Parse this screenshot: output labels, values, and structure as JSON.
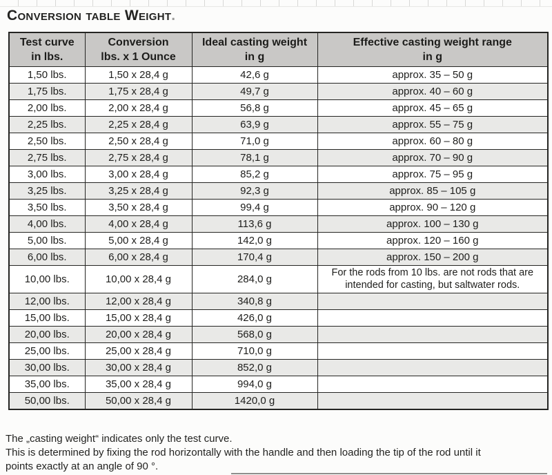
{
  "page": {
    "title": "Conversion table Weight",
    "title_dot": "."
  },
  "table": {
    "headers": [
      {
        "line1": "Test curve",
        "line2": "in lbs."
      },
      {
        "line1": "Conversion",
        "line2": "lbs. x 1 Ounce"
      },
      {
        "line1": "Ideal casting weight",
        "line2": "in g"
      },
      {
        "line1": "Effective casting weight range",
        "line2": "in g"
      }
    ],
    "rows": [
      [
        "1,50 lbs.",
        "1,50 x 28,4 g",
        "42,6 g",
        "approx. 35 – 50 g"
      ],
      [
        "1,75 lbs.",
        "1,75 x 28,4 g",
        "49,7 g",
        "approx. 40 – 60 g"
      ],
      [
        "2,00 lbs.",
        "2,00 x 28,4 g",
        "56,8 g",
        "approx. 45 – 65 g"
      ],
      [
        "2,25 lbs.",
        "2,25 x 28,4 g",
        "63,9 g",
        "approx. 55 – 75 g"
      ],
      [
        "2,50 lbs.",
        "2,50 x 28,4 g",
        "71,0 g",
        "approx. 60 – 80 g"
      ],
      [
        "2,75 lbs.",
        "2,75 x 28,4 g",
        "78,1 g",
        "approx. 70 – 90 g"
      ],
      [
        "3,00 lbs.",
        "3,00 x 28,4 g",
        "85,2 g",
        "approx. 75 – 95 g"
      ],
      [
        "3,25 lbs.",
        "3,25 x 28,4 g",
        "92,3 g",
        "approx. 85 – 105 g"
      ],
      [
        "3,50 lbs.",
        "3,50 x 28,4 g",
        "99,4 g",
        "approx. 90 – 120 g"
      ],
      [
        "4,00 lbs.",
        "4,00 x 28,4 g",
        "113,6 g",
        "approx. 100 – 130 g"
      ],
      [
        "5,00 lbs.",
        "5,00 x 28,4 g",
        "142,0 g",
        "approx. 120 – 160 g"
      ],
      [
        "6,00 lbs.",
        "6,00 x 28,4 g",
        "170,4 g",
        "approx. 150 – 200 g"
      ],
      [
        "10,00 lbs.",
        "10,00 x 28,4 g",
        "284,0 g",
        "For the rods from 10 lbs. are not rods that are intended for casting, but saltwater rods."
      ],
      [
        "12,00 lbs.",
        "12,00 x 28,4 g",
        "340,8 g",
        ""
      ],
      [
        "15,00 lbs.",
        "15,00 x 28,4 g",
        "426,0 g",
        ""
      ],
      [
        "20,00 lbs.",
        "20,00 x 28,4 g",
        "568,0 g",
        ""
      ],
      [
        "25,00 lbs.",
        "25,00 x 28,4 g",
        "710,0 g",
        ""
      ],
      [
        "30,00 lbs.",
        "30,00 x 28,4 g",
        "852,0 g",
        ""
      ],
      [
        "35,00 lbs.",
        "35,00 x 28,4 g",
        "994,0 g",
        ""
      ],
      [
        "50,00 lbs.",
        "50,00 x 28,4 g",
        "1420,0 g",
        ""
      ]
    ],
    "note_row_index": 12,
    "colors": {
      "header_bg": "#c9c8c6",
      "shade_bg": "#e9e9e7",
      "border": "#242422"
    }
  },
  "footer": {
    "line1": "The „casting weight“ indicates only the test curve.",
    "line2": "This is determined by fixing the rod horizontally with the handle and then loading the tip of the rod until it points exactly at an angle of 90 °."
  }
}
